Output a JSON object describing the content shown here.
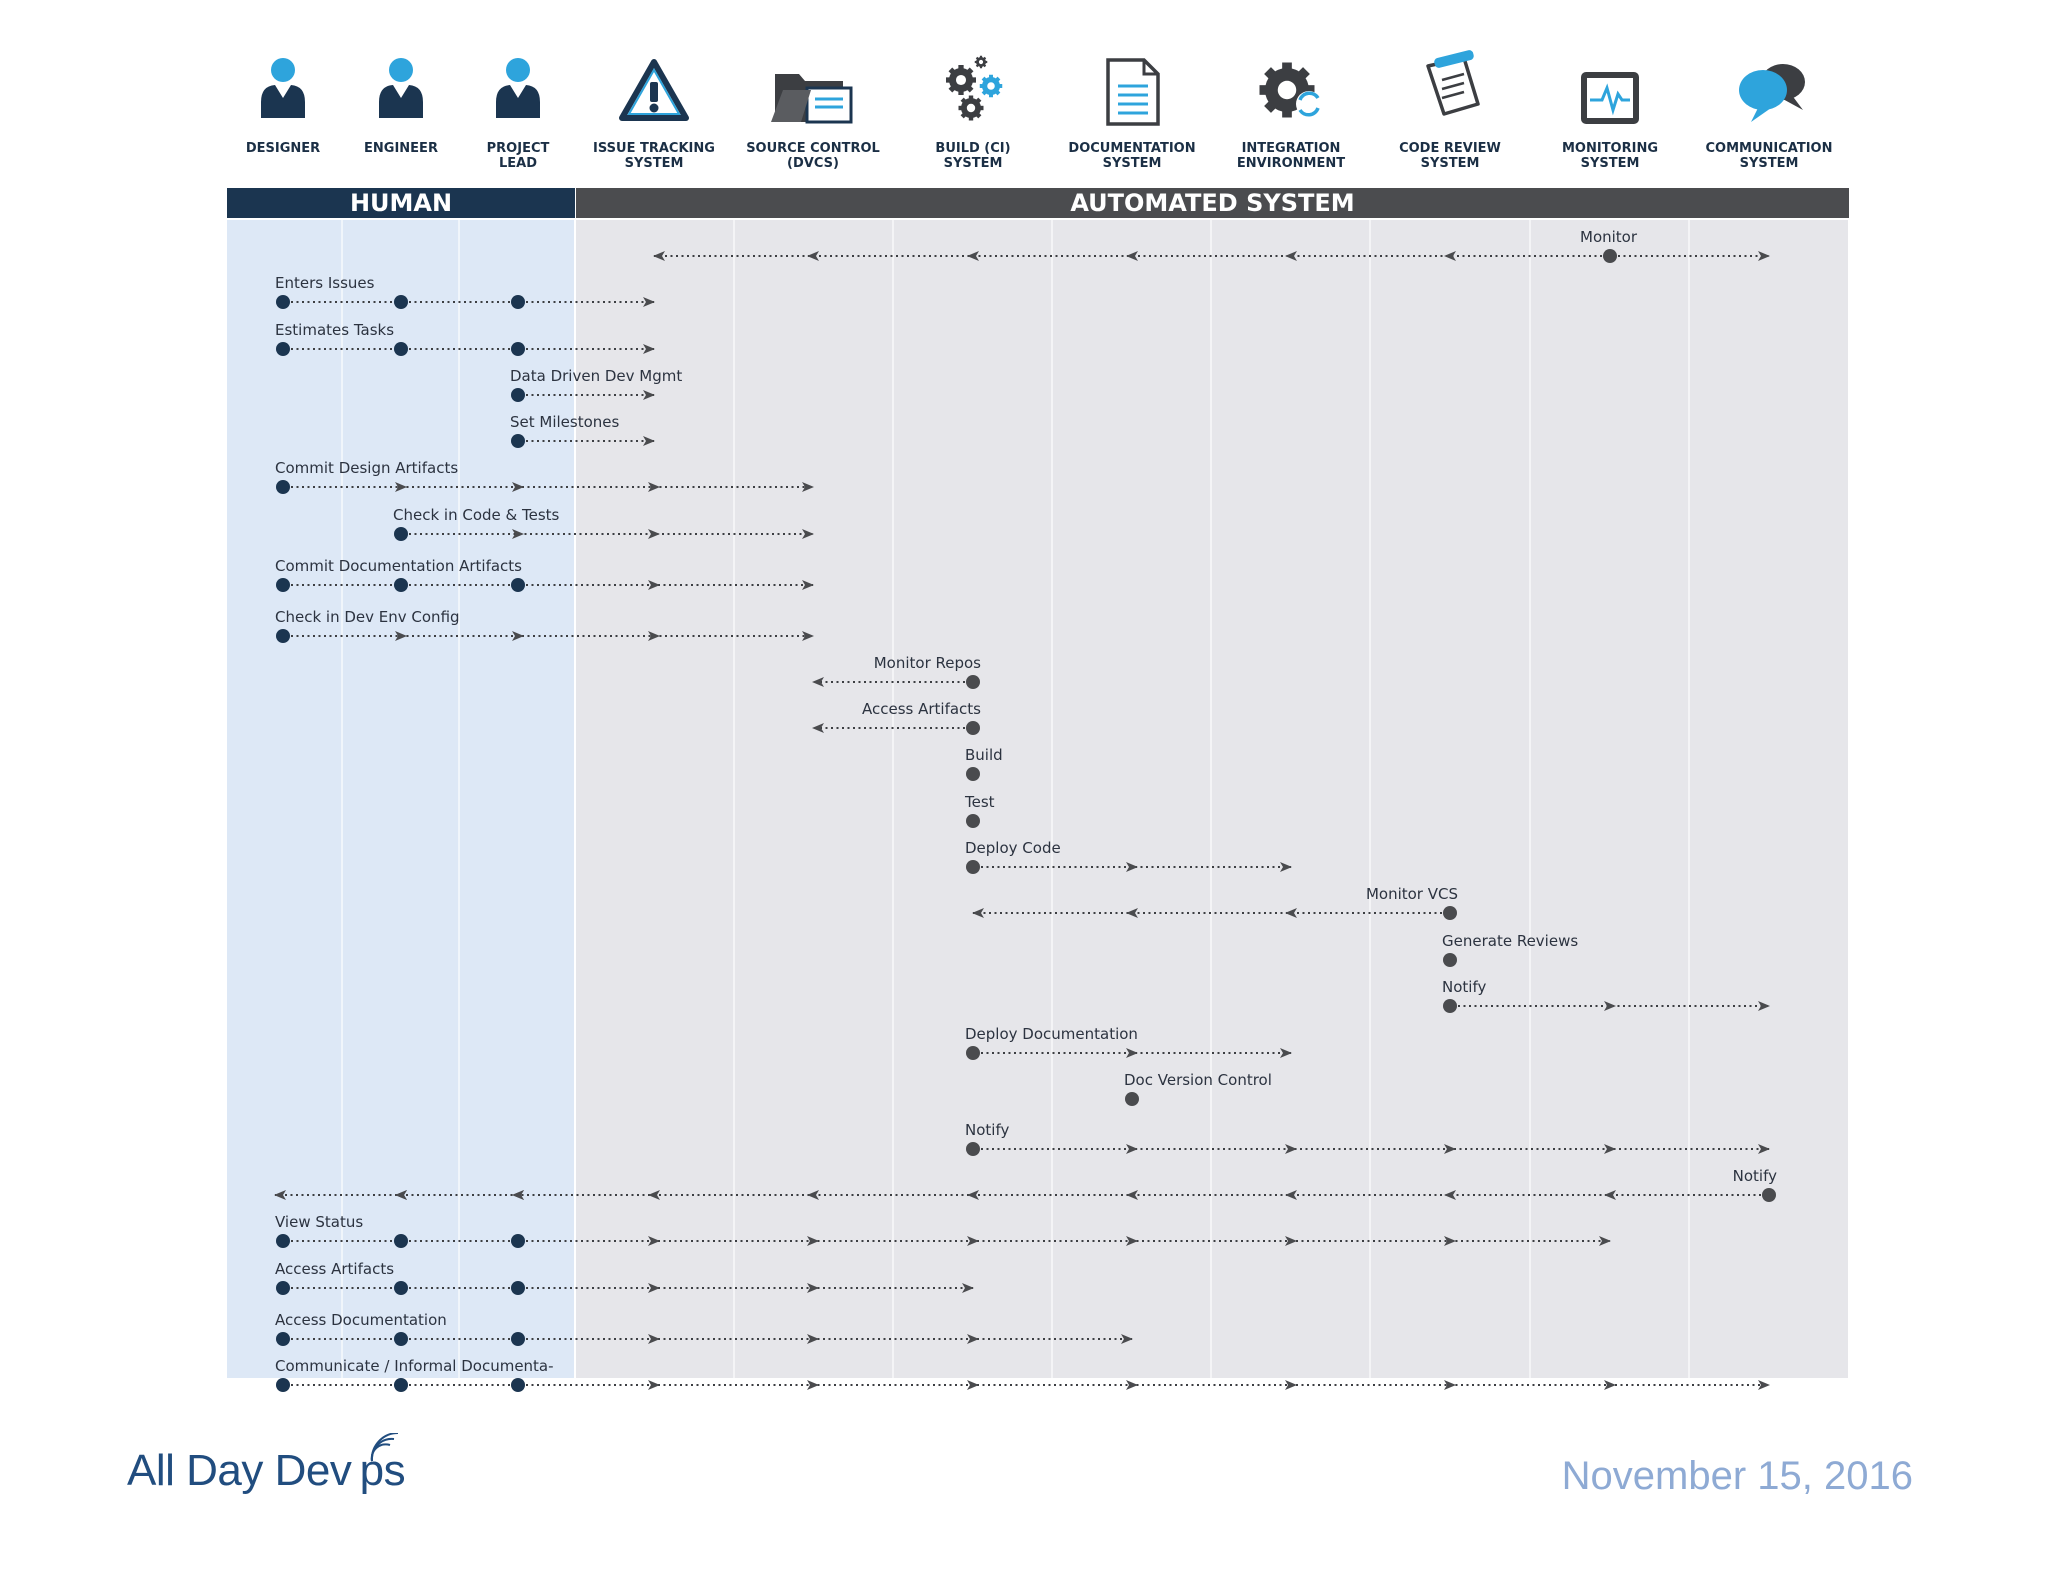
{
  "actors": [
    {
      "label": "DESIGNER",
      "icon": "person-icon",
      "group": "human"
    },
    {
      "label": "ENGINEER",
      "icon": "person-icon",
      "group": "human"
    },
    {
      "label": "PROJECT\nLEAD",
      "icon": "person-icon",
      "group": "human"
    },
    {
      "label": "ISSUE TRACKING\nSYSTEM",
      "icon": "warning-triangle-icon",
      "group": "automated"
    },
    {
      "label": "SOURCE CONTROL\n(DVCS)",
      "icon": "folder-icon",
      "group": "automated"
    },
    {
      "label": "BUILD (CI)\nSYSTEM",
      "icon": "gears-icon",
      "group": "automated"
    },
    {
      "label": "DOCUMENTATION\nSYSTEM",
      "icon": "document-icon",
      "group": "automated"
    },
    {
      "label": "INTEGRATION\nENVIRONMENT",
      "icon": "gear-refresh-icon",
      "group": "automated"
    },
    {
      "label": "CODE REVIEW\nSYSTEM",
      "icon": "scroll-pen-icon",
      "group": "automated"
    },
    {
      "label": "MONITORING\nSYSTEM",
      "icon": "monitor-pulse-icon",
      "group": "automated"
    },
    {
      "label": "COMMUNICATION\nSYSTEM",
      "icon": "speech-bubbles-icon",
      "group": "automated"
    }
  ],
  "bands": {
    "human": "HUMAN",
    "automated": "AUTOMATED SYSTEM"
  },
  "steps": [
    {
      "label": "Monitor",
      "origin": 9,
      "dir": "both",
      "from": 3,
      "to": 10
    },
    {
      "label": "Enters Issues",
      "dots": [
        0,
        1,
        2
      ],
      "to": 3
    },
    {
      "label": "Estimates Tasks",
      "dots": [
        0,
        1,
        2
      ],
      "to": 3
    },
    {
      "label": "Data Driven Dev Mgmt",
      "dots": [
        2
      ],
      "to": 3
    },
    {
      "label": "Set Milestones",
      "dots": [
        2
      ],
      "to": 3
    },
    {
      "label": "Commit Design Artifacts",
      "dots": [
        0
      ],
      "to": 4
    },
    {
      "label": "Check in Code & Tests",
      "dots": [
        1
      ],
      "to": 4
    },
    {
      "label": "Commit Documentation Artifacts",
      "dots": [
        0,
        1,
        2
      ],
      "to": 4
    },
    {
      "label": "Check in Dev Env Config",
      "dots": [
        0
      ],
      "to": 4
    },
    {
      "label": "Monitor Repos",
      "dots": [
        5
      ],
      "to": 4,
      "dir": "left"
    },
    {
      "label": "Access Artifacts",
      "dots": [
        5
      ],
      "to": 4,
      "dir": "left"
    },
    {
      "label": "Build",
      "dots": [
        5
      ]
    },
    {
      "label": "Test",
      "dots": [
        5
      ]
    },
    {
      "label": "Deploy Code",
      "dots": [
        5
      ],
      "to": 7
    },
    {
      "label": "Monitor VCS",
      "dots": [
        8
      ],
      "to": 5,
      "dir": "left"
    },
    {
      "label": "Generate Reviews",
      "dots": [
        8
      ]
    },
    {
      "label": "Notify",
      "dots": [
        8
      ],
      "to": 10
    },
    {
      "label": "Deploy Documentation",
      "dots": [
        5
      ],
      "to": 7
    },
    {
      "label": "Doc Version Control",
      "dots": [
        6
      ]
    },
    {
      "label": "Notify",
      "dots": [
        5
      ],
      "to": 10
    },
    {
      "label": "Notify",
      "dots": [
        10
      ],
      "to": 0,
      "dir": "left"
    },
    {
      "label": "View Status",
      "dots": [
        0,
        1,
        2
      ],
      "to": 9
    },
    {
      "label": "Access Artifacts",
      "dots": [
        0,
        1,
        2
      ],
      "to": 5
    },
    {
      "label": "Access Documentation",
      "dots": [
        0,
        1,
        2
      ],
      "to": 6
    },
    {
      "label": "Communicate / Informal Documenta-",
      "dots": [
        0,
        1,
        2
      ],
      "to": 10
    }
  ],
  "brand": "All Day Dev ps",
  "date": "November 15, 2016",
  "colors": {
    "human_bg": "#dde8f6",
    "auto_bg": "#e6e6ea",
    "human_band": "#1b3550",
    "auto_band": "#4b4c4f",
    "human_dot": "#1b3550",
    "auto_dot": "#4a4b4e",
    "accent_blue": "#2ea4dc"
  }
}
